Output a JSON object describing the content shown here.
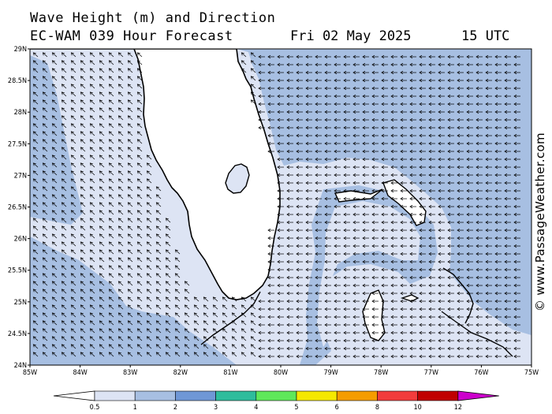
{
  "header": {
    "title": "Wave Height (m) and Direction",
    "forecast": "EC-WAM 039 Hour Forecast",
    "date": "Fri 02 May 2025",
    "time": "15 UTC"
  },
  "axes": {
    "lat_labels": [
      "29N",
      "28.5N",
      "28N",
      "27.5N",
      "27N",
      "26.5N",
      "26N",
      "25.5N",
      "25N",
      "24.5N",
      "24N"
    ],
    "lon_labels": [
      "85W",
      "84W",
      "83W",
      "82W",
      "81W",
      "80W",
      "79W",
      "78W",
      "77W",
      "76W",
      "75W"
    ]
  },
  "map": {
    "region": "Florida, Bahamas",
    "lon_range": [
      -85,
      -75
    ],
    "lat_range": [
      24,
      29
    ],
    "wave_direction": "arrows point toward the west/northwest (waves from the east/southeast)"
  },
  "legend": {
    "labels": [
      "0.5",
      "1",
      "2",
      "3",
      "4",
      "5",
      "6",
      "8",
      "10",
      "12"
    ],
    "colors": [
      "#dde4f4",
      "#a7bfe2",
      "#6f97d6",
      "#2ebc9c",
      "#5fe85a",
      "#f5e800",
      "#f59c00",
      "#f23c3c",
      "#c00000",
      "#cc00cc"
    ],
    "arrow_colors": [
      "#ffffff",
      "#cc00cc"
    ]
  },
  "watermark": "© www.PassageWeather.com",
  "colors": {
    "land": "#ffffff",
    "sea_low": "#dde4f4",
    "sea_mid": "#a7bfe2",
    "coast": "#000000"
  }
}
